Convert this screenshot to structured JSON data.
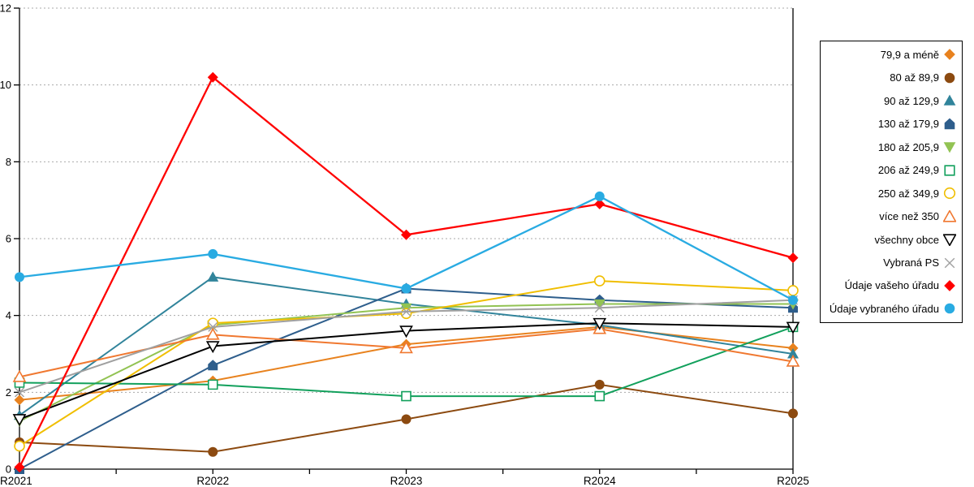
{
  "chart_data": {
    "type": "line",
    "title": "",
    "xlabel": "",
    "ylabel": "",
    "categories": [
      "R2021",
      "R2022",
      "R2023",
      "R2024",
      "R2025"
    ],
    "ylim": [
      0,
      12
    ],
    "ytick_step": 2,
    "y_tick_labels": [
      "0",
      "2",
      "4",
      "6",
      "8",
      "10",
      "12"
    ],
    "grid": "horizontal dashed gridlines at each y tick",
    "legend_position": "right outside, bordered box",
    "series": [
      {
        "name": "79,9 a méně",
        "color": "#E8821E",
        "marker": "diamond",
        "marker_fill": "filled",
        "values": [
          1.8,
          2.3,
          3.25,
          3.7,
          3.15
        ]
      },
      {
        "name": "80 až 89,9",
        "color": "#8C4A10",
        "marker": "circle",
        "marker_fill": "filled",
        "values": [
          0.7,
          0.45,
          1.3,
          2.2,
          1.45
        ]
      },
      {
        "name": "90 až 129,9",
        "color": "#31849B",
        "marker": "triangle-up",
        "marker_fill": "filled",
        "values": [
          1.4,
          5.0,
          4.3,
          3.75,
          3.0
        ]
      },
      {
        "name": "130 až 179,9",
        "color": "#2E5E8C",
        "marker": "pentagon",
        "marker_fill": "filled",
        "values": [
          0.0,
          2.7,
          4.7,
          4.4,
          4.2
        ]
      },
      {
        "name": "180 až 205,9",
        "color": "#92C353",
        "marker": "triangle-down",
        "marker_fill": "filled",
        "values": [
          1.25,
          3.75,
          4.2,
          4.3,
          4.3
        ]
      },
      {
        "name": "206 až 249,9",
        "color": "#12A05C",
        "marker": "square",
        "marker_fill": "open",
        "values": [
          2.25,
          2.2,
          1.9,
          1.9,
          3.7
        ]
      },
      {
        "name": "250 až 349,9",
        "color": "#F0BE00",
        "marker": "circle",
        "marker_fill": "open",
        "values": [
          0.6,
          3.8,
          4.05,
          4.9,
          4.65
        ]
      },
      {
        "name": "více než 350",
        "color": "#F07830",
        "marker": "triangle-up",
        "marker_fill": "open",
        "values": [
          2.4,
          3.5,
          3.15,
          3.65,
          2.8
        ]
      },
      {
        "name": "všechny obce",
        "color": "#000000",
        "marker": "triangle-down",
        "marker_fill": "open",
        "values": [
          1.3,
          3.2,
          3.6,
          3.8,
          3.7
        ]
      },
      {
        "name": "Vybraná PS",
        "color": "#A0A0A0",
        "marker": "x",
        "marker_fill": "open",
        "values": [
          2.0,
          3.7,
          4.1,
          4.2,
          4.4
        ]
      },
      {
        "name": "Údaje vašeho úřadu",
        "color": "#FF0000",
        "marker": "diamond",
        "marker_fill": "filled",
        "values": [
          0.05,
          10.2,
          6.1,
          6.9,
          5.5
        ]
      },
      {
        "name": "Údaje vybraného úřadu",
        "color": "#29ABE2",
        "marker": "circle",
        "marker_fill": "filled",
        "values": [
          5.0,
          5.6,
          4.7,
          7.1,
          4.4
        ]
      }
    ]
  },
  "style": {
    "grid_color": "#AAAAAA",
    "axis_color": "#000000",
    "background": "#FFFFFF"
  }
}
